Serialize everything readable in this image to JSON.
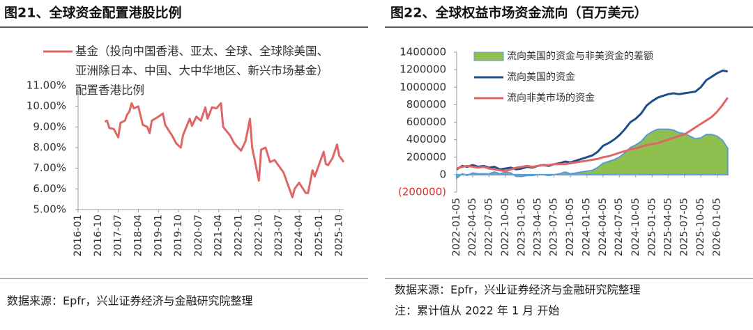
{
  "chart_data": [
    {
      "type": "line",
      "title": "图21、全球资金配置港股比例",
      "source": "数据来源：Epfr，兴业证券经济与金融研究院整理",
      "x": [
        "2017-01",
        "2017-02",
        "2017-03",
        "2017-05",
        "2017-07",
        "2017-08",
        "2017-10",
        "2017-11",
        "2017-12",
        "2018-01",
        "2018-02",
        "2018-04",
        "2018-06",
        "2018-08",
        "2018-09",
        "2018-10",
        "2019-01",
        "2019-03",
        "2019-04",
        "2019-07",
        "2019-09",
        "2019-11",
        "2019-12",
        "2020-03",
        "2020-04",
        "2020-06",
        "2020-08",
        "2020-10",
        "2020-11",
        "2021-01",
        "2021-03",
        "2021-05",
        "2021-06",
        "2021-09",
        "2021-11",
        "2022-02",
        "2022-04",
        "2022-06",
        "2022-07",
        "2022-10",
        "2022-11",
        "2023-01",
        "2023-03",
        "2023-05",
        "2023-09",
        "2024-01",
        "2024-02",
        "2024-04",
        "2024-07",
        "2024-08",
        "2024-10",
        "2024-11",
        "2025-01",
        "2025-03",
        "2025-04",
        "2025-05",
        "2025-07",
        "2025-09",
        "2025-10",
        "2025-12"
      ],
      "series": [
        {
          "name": "基金（投向中国香港、亚太、全球、全球除美国、亚洲除日本、中国、大中华地区、新兴市场基金）配置香港比例",
          "color": "#e06666",
          "values": [
            9.25,
            9.3,
            8.95,
            8.9,
            8.5,
            9.2,
            9.3,
            9.6,
            9.75,
            10.15,
            9.9,
            10.0,
            9.1,
            9.0,
            8.7,
            9.3,
            9.5,
            9.65,
            9.1,
            8.6,
            8.2,
            8.0,
            8.6,
            9.4,
            9.05,
            9.5,
            9.3,
            9.95,
            9.4,
            9.95,
            9.9,
            10.15,
            9.0,
            8.6,
            8.2,
            7.85,
            8.3,
            9.4,
            8.0,
            6.4,
            7.9,
            8.0,
            7.3,
            7.4,
            6.8,
            5.6,
            6.0,
            6.3,
            5.8,
            5.8,
            6.9,
            6.6,
            7.2,
            7.8,
            7.2,
            7.15,
            7.5,
            8.15,
            7.6,
            7.3
          ]
        }
      ],
      "xlim": [
        "2016-01",
        "2025-12"
      ],
      "xticks": [
        "2016-01",
        "2016-10",
        "2017-07",
        "2018-04",
        "2019-01",
        "2019-10",
        "2020-07",
        "2021-04",
        "2022-01",
        "2022-10",
        "2023-07",
        "2024-04",
        "2025-01",
        "2025-10"
      ],
      "ylim": [
        5,
        11
      ],
      "yticks": [
        {
          "value": 5,
          "label": "5.00%"
        },
        {
          "value": 6,
          "label": "6.00%"
        },
        {
          "value": 7,
          "label": "7.00%"
        },
        {
          "value": 8,
          "label": "8.00%"
        },
        {
          "value": 9,
          "label": "9.00%"
        },
        {
          "value": 10,
          "label": "10.00%"
        },
        {
          "value": 11,
          "label": "11.00%"
        }
      ],
      "grid": false
    },
    {
      "type": "line",
      "title": "图22、全球权益市场资金流向（百万美元）",
      "source": "数据来源：Epfr，兴业证券经济与金融研究院整理",
      "note": "注：累计值从 2022 年 1 月 开始",
      "x": [
        "2022-01-05",
        "2022-02-05",
        "2022-03-05",
        "2022-04-05",
        "2022-05-05",
        "2022-06-05",
        "2022-07-05",
        "2022-08-05",
        "2022-09-05",
        "2022-10-05",
        "2022-11-05",
        "2022-12-05",
        "2023-01-05",
        "2023-02-05",
        "2023-03-05",
        "2023-04-05",
        "2023-05-05",
        "2023-06-05",
        "2023-07-05",
        "2023-08-05",
        "2023-09-05",
        "2023-10-05",
        "2023-11-05",
        "2023-12-05",
        "2024-01-05",
        "2024-02-05",
        "2024-03-05",
        "2024-04-05",
        "2024-05-05",
        "2024-06-05",
        "2024-07-05",
        "2024-08-05",
        "2024-09-05",
        "2024-10-05",
        "2024-11-05",
        "2024-12-05",
        "2025-01-05",
        "2025-02-05",
        "2025-03-05",
        "2025-04-05",
        "2025-05-05",
        "2025-06-05",
        "2025-07-05",
        "2025-08-05",
        "2025-09-05",
        "2025-10-05",
        "2025-11-05",
        "2025-12-05",
        "2026-01-05",
        "2026-02-05",
        "2026-03-05"
      ],
      "series": [
        {
          "name": "流向美国的资金与非美资金的差额",
          "type": "area",
          "color": "#8fc04f",
          "edge_color": "#5b9bd5",
          "values": [
            -40000,
            10000,
            -10000,
            20000,
            10000,
            10000,
            10000,
            30000,
            10000,
            30000,
            20000,
            -20000,
            -20000,
            -10000,
            -10000,
            0,
            0,
            -10000,
            0,
            10000,
            30000,
            10000,
            20000,
            30000,
            40000,
            50000,
            80000,
            130000,
            150000,
            170000,
            200000,
            250000,
            310000,
            340000,
            380000,
            450000,
            490000,
            520000,
            520000,
            520000,
            510000,
            480000,
            470000,
            440000,
            410000,
            420000,
            460000,
            460000,
            440000,
            390000,
            300000
          ]
        },
        {
          "name": "流向美国的资金",
          "type": "line",
          "color": "#1f4e8c",
          "values": [
            60000,
            100000,
            90000,
            110000,
            90000,
            100000,
            80000,
            90000,
            60000,
            70000,
            80000,
            60000,
            70000,
            90000,
            80000,
            100000,
            110000,
            100000,
            120000,
            130000,
            150000,
            140000,
            160000,
            180000,
            200000,
            220000,
            260000,
            330000,
            360000,
            400000,
            450000,
            520000,
            600000,
            640000,
            700000,
            790000,
            840000,
            880000,
            900000,
            920000,
            930000,
            920000,
            930000,
            940000,
            950000,
            1000000,
            1080000,
            1120000,
            1160000,
            1190000,
            1180000
          ]
        },
        {
          "name": "流向非美市场的资金",
          "type": "line",
          "color": "#e06666",
          "values": [
            70000,
            90000,
            100000,
            90000,
            80000,
            90000,
            70000,
            60000,
            50000,
            40000,
            60000,
            80000,
            90000,
            100000,
            90000,
            100000,
            110000,
            110000,
            120000,
            120000,
            120000,
            130000,
            140000,
            150000,
            160000,
            170000,
            180000,
            200000,
            210000,
            230000,
            250000,
            270000,
            290000,
            300000,
            320000,
            340000,
            350000,
            360000,
            380000,
            400000,
            420000,
            440000,
            460000,
            500000,
            540000,
            580000,
            620000,
            660000,
            720000,
            800000,
            880000
          ]
        }
      ],
      "xlim": [
        "2022-01-05",
        "2026-03-10"
      ],
      "xticks": [
        "2022-01-05",
        "2022-04-05",
        "2022-07-05",
        "2022-10-05",
        "2023-01-05",
        "2023-04-05",
        "2023-07-05",
        "2023-10-05",
        "2024-01-05",
        "2024-04-05",
        "2024-07-05",
        "2024-10-05",
        "2025-01-05",
        "2025-04-05",
        "2025-07-05",
        "2025-10-05",
        "2026-01-05"
      ],
      "ylim": [
        -200000,
        1400000
      ],
      "yticks": [
        {
          "value": -200000,
          "label": "(200000)"
        },
        0,
        200000,
        400000,
        600000,
        800000,
        1000000,
        1200000,
        1400000
      ],
      "grid": false
    }
  ]
}
